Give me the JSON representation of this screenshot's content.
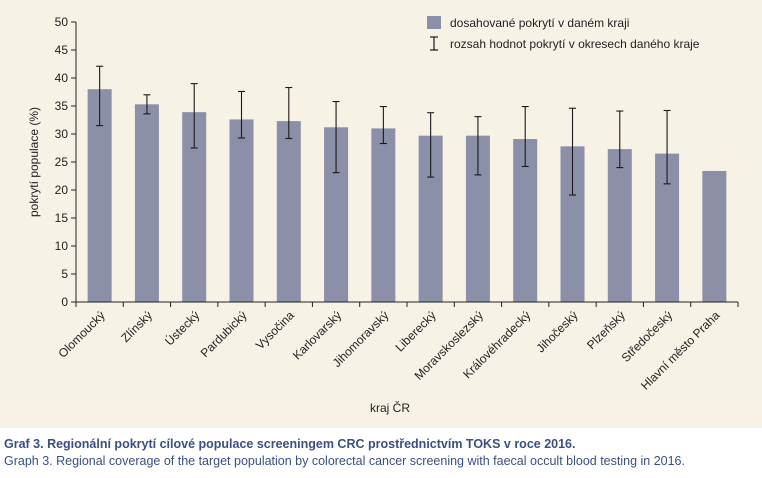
{
  "chart_data": {
    "type": "bar",
    "title": "",
    "xlabel": "kraj ČR",
    "ylabel": "pokrytí populace (%)",
    "ylim": [
      0,
      50
    ],
    "yticks": [
      0,
      5,
      10,
      15,
      20,
      25,
      30,
      35,
      40,
      45,
      50
    ],
    "grid": false,
    "legend_position": "top-right",
    "categories": [
      "Olomoucký",
      "Zlínský",
      "Ústecký",
      "Pardubický",
      "Vysočina",
      "Karlovarský",
      "Jihomoravský",
      "Liberecký",
      "Moravskoslezský",
      "Královéhradecký",
      "Jihočeský",
      "Plzeňský",
      "Středočeský",
      "Hlavní město Praha"
    ],
    "series": [
      {
        "name": "dosahované pokrytí v daném kraji",
        "values": [
          38.0,
          35.3,
          33.9,
          32.6,
          32.3,
          31.2,
          31.0,
          29.7,
          29.7,
          29.1,
          27.8,
          27.3,
          26.5,
          23.4
        ]
      }
    ],
    "error_bars": {
      "name": "rozsah hodnot pokrytí v okresech daného kraje",
      "ranges": [
        [
          31.5,
          42.1
        ],
        [
          33.6,
          37.0
        ],
        [
          27.5,
          39.0
        ],
        [
          29.3,
          37.6
        ],
        [
          29.2,
          38.3
        ],
        [
          23.1,
          35.8
        ],
        [
          28.3,
          34.9
        ],
        [
          22.3,
          33.8
        ],
        [
          22.7,
          33.1
        ],
        [
          24.2,
          34.9
        ],
        [
          19.1,
          34.6
        ],
        [
          24.0,
          34.1
        ],
        [
          21.1,
          34.2
        ],
        null
      ]
    },
    "colors": {
      "bar": "#8c8fa8",
      "error": "#1a1a1a",
      "panel": "#f6f2e6"
    }
  },
  "caption": {
    "czech": "Graf 3. Regionální pokrytí cílové populace screeningem CRC prostřednictvím TOKS v roce 2016.",
    "english": "Graph 3. Regional coverage of the target population by colorectal cancer screening with faecal occult blood testing in 2016."
  }
}
